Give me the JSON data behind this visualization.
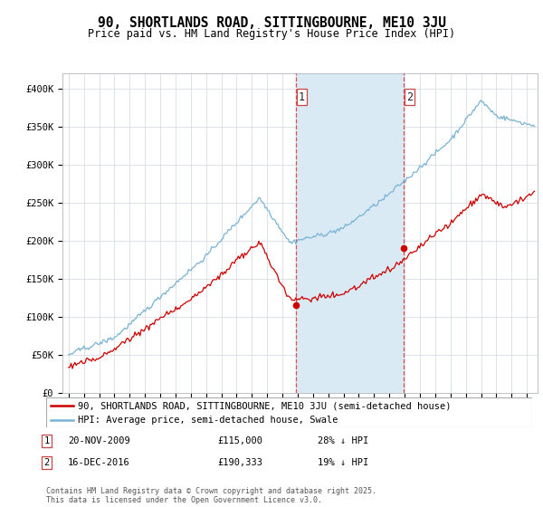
{
  "title": "90, SHORTLANDS ROAD, SITTINGBOURNE, ME10 3JU",
  "subtitle": "Price paid vs. HM Land Registry's House Price Index (HPI)",
  "hpi_label": "HPI: Average price, semi-detached house, Swale",
  "property_label": "90, SHORTLANDS ROAD, SITTINGBOURNE, ME10 3JU (semi-detached house)",
  "footer": "Contains HM Land Registry data © Crown copyright and database right 2025.\nThis data is licensed under the Open Government Licence v3.0.",
  "transaction1_date": "20-NOV-2009",
  "transaction1_price": "£115,000",
  "transaction1_hpi": "28% ↓ HPI",
  "transaction2_date": "16-DEC-2016",
  "transaction2_price": "£190,333",
  "transaction2_hpi": "19% ↓ HPI",
  "sale1_year": 2009.89,
  "sale1_price": 115000,
  "sale2_year": 2016.96,
  "sale2_price": 190333,
  "ylim": [
    0,
    420000
  ],
  "yticks": [
    0,
    50000,
    100000,
    150000,
    200000,
    250000,
    300000,
    350000,
    400000
  ],
  "ytick_labels": [
    "£0",
    "£50K",
    "£100K",
    "£150K",
    "£200K",
    "£250K",
    "£300K",
    "£350K",
    "£400K"
  ],
  "hpi_color": "#7ab3d4",
  "property_color": "#cc0000",
  "highlight_color": "#daeaf5",
  "vline_color": "#dd3333",
  "background_color": "#ffffff",
  "grid_color": "#d0d8e0",
  "title_fontsize": 10.5,
  "subtitle_fontsize": 8.5,
  "tick_fontsize": 7.5,
  "legend_fontsize": 7.5,
  "footer_fontsize": 6.0,
  "xstart": 1995,
  "xend": 2025
}
